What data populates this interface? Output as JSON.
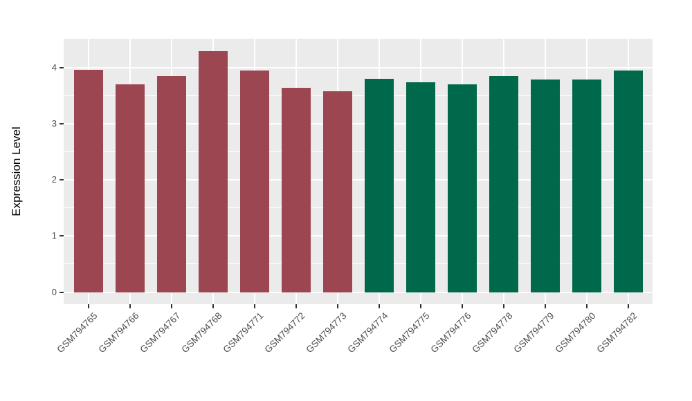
{
  "chart_data": {
    "type": "bar",
    "title": "",
    "xlabel": "",
    "ylabel": "Expression Level",
    "ylim": [
      -0.22,
      4.51
    ],
    "yticks": [
      0,
      1,
      2,
      3,
      4
    ],
    "grid": "on",
    "legend": "none",
    "panel_background_color": "#EBEBEB",
    "gridline_color": "#FFFFFF",
    "tick_label_color": "#4D4D4D",
    "axis_title_color": "#000000",
    "group_colors": {
      "groupA": "#9C4651",
      "groupB": "#01694B"
    },
    "categories": [
      "GSM794765",
      "GSM794766",
      "GSM794767",
      "GSM794768",
      "GSM794771",
      "GSM794772",
      "GSM794773",
      "GSM794774",
      "GSM794775",
      "GSM794776",
      "GSM794778",
      "GSM794779",
      "GSM794780",
      "GSM794782"
    ],
    "values": [
      3.96,
      3.7,
      3.85,
      4.29,
      3.95,
      3.64,
      3.58,
      3.8,
      3.73,
      3.7,
      3.85,
      3.79,
      3.79,
      3.94
    ],
    "bars": [
      {
        "label": "GSM794765",
        "value": 3.96,
        "group": "groupA"
      },
      {
        "label": "GSM794766",
        "value": 3.7,
        "group": "groupA"
      },
      {
        "label": "GSM794767",
        "value": 3.85,
        "group": "groupA"
      },
      {
        "label": "GSM794768",
        "value": 4.29,
        "group": "groupA"
      },
      {
        "label": "GSM794771",
        "value": 3.95,
        "group": "groupA"
      },
      {
        "label": "GSM794772",
        "value": 3.64,
        "group": "groupA"
      },
      {
        "label": "GSM794773",
        "value": 3.58,
        "group": "groupA"
      },
      {
        "label": "GSM794774",
        "value": 3.8,
        "group": "groupB"
      },
      {
        "label": "GSM794775",
        "value": 3.73,
        "group": "groupB"
      },
      {
        "label": "GSM794776",
        "value": 3.7,
        "group": "groupB"
      },
      {
        "label": "GSM794778",
        "value": 3.85,
        "group": "groupB"
      },
      {
        "label": "GSM794779",
        "value": 3.79,
        "group": "groupB"
      },
      {
        "label": "GSM794780",
        "value": 3.79,
        "group": "groupB"
      },
      {
        "label": "GSM794782",
        "value": 3.94,
        "group": "groupB"
      }
    ]
  }
}
